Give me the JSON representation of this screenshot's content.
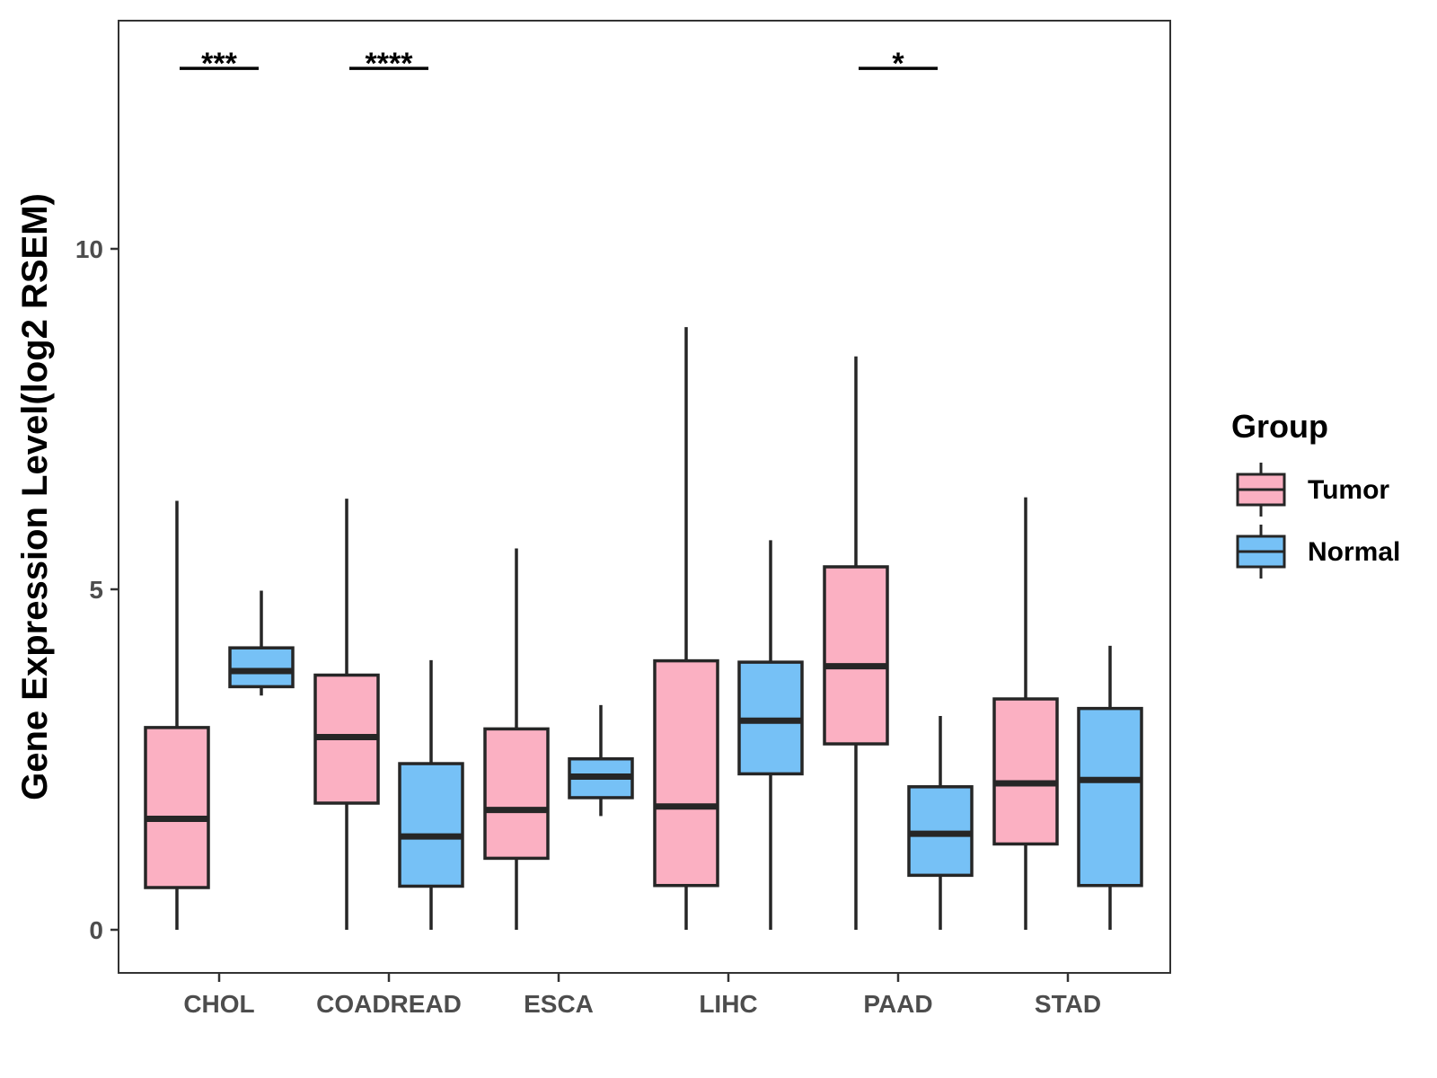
{
  "chart_data": {
    "type": "boxplot",
    "title": "",
    "xlabel": "",
    "ylabel": "Gene Expression Level(log2 RSEM)",
    "ylim": [
      -0.6,
      13.3
    ],
    "yticks": [
      0,
      5,
      10
    ],
    "grid": false,
    "categories": [
      "CHOL",
      "COADREAD",
      "ESCA",
      "LIHC",
      "PAAD",
      "STAD"
    ],
    "legend": {
      "title": "Group",
      "position": "right"
    },
    "series": [
      {
        "name": "Tumor",
        "color": "#FBB0C2",
        "boxes": [
          {
            "min": 0,
            "q1": 0.62,
            "median": 1.63,
            "q3": 2.97,
            "max": 6.3
          },
          {
            "min": 0,
            "q1": 1.86,
            "median": 2.83,
            "q3": 3.74,
            "max": 6.33
          },
          {
            "min": 0,
            "q1": 1.05,
            "median": 1.76,
            "q3": 2.95,
            "max": 5.6
          },
          {
            "min": 0,
            "q1": 0.65,
            "median": 1.81,
            "q3": 3.95,
            "max": 8.85
          },
          {
            "min": 0,
            "q1": 2.73,
            "median": 3.87,
            "q3": 5.33,
            "max": 8.42
          },
          {
            "min": 0,
            "q1": 1.26,
            "median": 2.15,
            "q3": 3.39,
            "max": 6.35
          }
        ]
      },
      {
        "name": "Normal",
        "color": "#76C1F6",
        "boxes": [
          {
            "min": 3.44,
            "q1": 3.57,
            "median": 3.8,
            "q3": 4.14,
            "max": 4.98
          },
          {
            "min": 0,
            "q1": 0.64,
            "median": 1.37,
            "q3": 2.44,
            "max": 3.96
          },
          {
            "min": 1.67,
            "q1": 1.94,
            "median": 2.25,
            "q3": 2.51,
            "max": 3.3
          },
          {
            "min": 0,
            "q1": 2.29,
            "median": 3.07,
            "q3": 3.93,
            "max": 5.72
          },
          {
            "min": 0,
            "q1": 0.8,
            "median": 1.41,
            "q3": 2.1,
            "max": 3.14
          },
          {
            "min": 0,
            "q1": 0.65,
            "median": 2.2,
            "q3": 3.25,
            "max": 4.17
          }
        ]
      }
    ],
    "significance": [
      {
        "category": "CHOL",
        "label": "***",
        "y": 12.65
      },
      {
        "category": "COADREAD",
        "label": "****",
        "y": 12.65
      },
      {
        "category": "PAAD",
        "label": "*",
        "y": 12.65
      }
    ]
  }
}
